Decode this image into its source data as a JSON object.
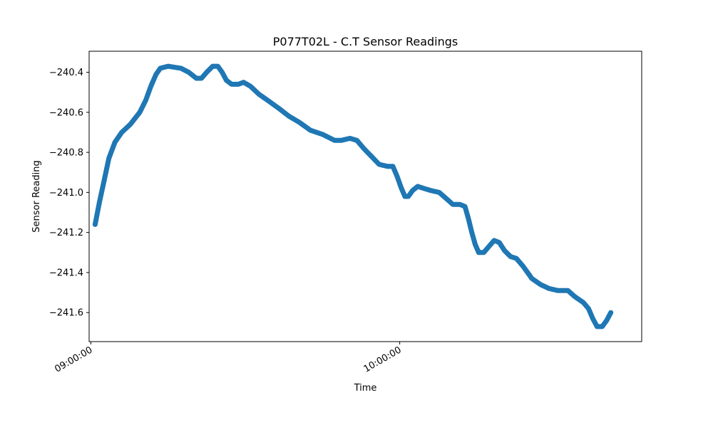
{
  "chart_data": {
    "type": "line",
    "title": "P077T02L - C.T Sensor Readings",
    "xlabel": "Time",
    "ylabel": "Sensor Reading",
    "x_ticks": [
      "09:00:00",
      "10:00:00"
    ],
    "y_ticks": [
      -241.6,
      -241.4,
      -241.2,
      -241.0,
      -240.8,
      -240.6,
      -240.4
    ],
    "xlim": [
      "08:59:40",
      "10:47:00"
    ],
    "ylim": [
      -241.745,
      -240.295
    ],
    "grid": false,
    "series": [
      {
        "color": "#1f77b4",
        "points": [
          [
            "09:00:50",
            -241.16
          ],
          [
            "09:01:40",
            -241.05
          ],
          [
            "09:02:30",
            -240.95
          ],
          [
            "09:03:30",
            -240.83
          ],
          [
            "09:04:40",
            -240.75
          ],
          [
            "09:06:00",
            -240.7
          ],
          [
            "09:07:40",
            -240.66
          ],
          [
            "09:09:30",
            -240.6
          ],
          [
            "09:10:40",
            -240.54
          ],
          [
            "09:11:40",
            -240.47
          ],
          [
            "09:12:40",
            -240.41
          ],
          [
            "09:13:30",
            -240.38
          ],
          [
            "09:15:00",
            -240.37
          ],
          [
            "09:17:30",
            -240.38
          ],
          [
            "09:19:00",
            -240.4
          ],
          [
            "09:20:30",
            -240.43
          ],
          [
            "09:21:30",
            -240.43
          ],
          [
            "09:22:30",
            -240.4
          ],
          [
            "09:23:40",
            -240.37
          ],
          [
            "09:24:40",
            -240.37
          ],
          [
            "09:25:30",
            -240.4
          ],
          [
            "09:26:20",
            -240.44
          ],
          [
            "09:27:20",
            -240.46
          ],
          [
            "09:28:40",
            -240.46
          ],
          [
            "09:29:40",
            -240.45
          ],
          [
            "09:31:00",
            -240.47
          ],
          [
            "09:32:40",
            -240.51
          ],
          [
            "09:34:20",
            -240.54
          ],
          [
            "09:36:30",
            -240.58
          ],
          [
            "09:38:30",
            -240.62
          ],
          [
            "09:40:30",
            -240.65
          ],
          [
            "09:42:40",
            -240.69
          ],
          [
            "09:45:00",
            -240.71
          ],
          [
            "09:47:20",
            -240.74
          ],
          [
            "09:48:40",
            -240.74
          ],
          [
            "09:50:20",
            -240.73
          ],
          [
            "09:51:40",
            -240.74
          ],
          [
            "09:53:00",
            -240.78
          ],
          [
            "09:54:30",
            -240.82
          ],
          [
            "09:56:00",
            -240.86
          ],
          [
            "09:57:40",
            -240.87
          ],
          [
            "09:58:40",
            -240.87
          ],
          [
            "09:59:30",
            -240.92
          ],
          [
            "10:00:20",
            -240.98
          ],
          [
            "10:01:00",
            -241.02
          ],
          [
            "10:01:40",
            -241.02
          ],
          [
            "10:02:30",
            -240.99
          ],
          [
            "10:03:30",
            -240.97
          ],
          [
            "10:04:40",
            -240.98
          ],
          [
            "10:06:00",
            -240.99
          ],
          [
            "10:07:40",
            -241.0
          ],
          [
            "10:09:00",
            -241.03
          ],
          [
            "10:10:20",
            -241.06
          ],
          [
            "10:11:40",
            -241.06
          ],
          [
            "10:12:40",
            -241.07
          ],
          [
            "10:13:20",
            -241.13
          ],
          [
            "10:14:00",
            -241.2
          ],
          [
            "10:14:40",
            -241.26
          ],
          [
            "10:15:20",
            -241.3
          ],
          [
            "10:16:20",
            -241.3
          ],
          [
            "10:17:20",
            -241.27
          ],
          [
            "10:18:20",
            -241.24
          ],
          [
            "10:19:20",
            -241.25
          ],
          [
            "10:20:20",
            -241.29
          ],
          [
            "10:21:30",
            -241.32
          ],
          [
            "10:22:40",
            -241.33
          ],
          [
            "10:24:00",
            -241.37
          ],
          [
            "10:25:40",
            -241.43
          ],
          [
            "10:27:20",
            -241.46
          ],
          [
            "10:29:00",
            -241.48
          ],
          [
            "10:30:40",
            -241.49
          ],
          [
            "10:32:40",
            -241.49
          ],
          [
            "10:34:00",
            -241.52
          ],
          [
            "10:35:40",
            -241.55
          ],
          [
            "10:36:40",
            -241.58
          ],
          [
            "10:37:30",
            -241.63
          ],
          [
            "10:38:20",
            -241.67
          ],
          [
            "10:39:20",
            -241.67
          ],
          [
            "10:40:10",
            -241.64
          ],
          [
            "10:41:00",
            -241.6
          ]
        ]
      }
    ]
  }
}
